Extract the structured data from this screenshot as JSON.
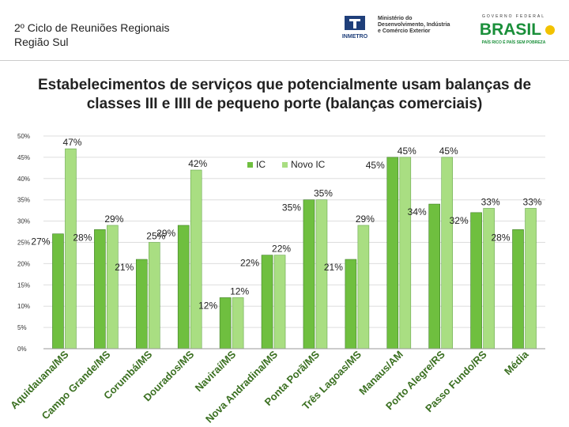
{
  "header": {
    "event_line1": "2º Ciclo de Reuniões Regionais",
    "event_line2": "Região Sul",
    "inmetro_label": "INMETRO",
    "ministry_line1": "Ministério do",
    "ministry_line2": "Desenvolvimento, Indústria",
    "ministry_line3": "e Comércio Exterior",
    "govt_label": "GOVERNO FEDERAL",
    "brasil_label": "BRASIL",
    "brasil_slogan": "PAÍS RICO É PAÍS SEM POBREZA"
  },
  "colors": {
    "ic": "#6fbf3f",
    "novo_ic": "#a9de82",
    "ic_edge": "#3f7f26",
    "novo_edge": "#6aa84f"
  },
  "chart_data": {
    "type": "bar",
    "title": "Estabelecimentos de serviços que potencialmente usam balanças de classes III e IIII de pequeno porte (balanças comerciais)",
    "title_line1": "Estabelecimentos de serviços que potencialmente usam balanças de",
    "title_line2": "classes III e IIII de pequeno porte (balanças comerciais)",
    "categories": [
      "Aquidauana/MS",
      "Campo Grande/MS",
      "Corumbá/MS",
      "Dourados/MS",
      "Naviraí/MS",
      "Nova Andradina/MS",
      "Ponta Porã/MS",
      "Três Lagoas/MS",
      "Manaus/AM",
      "Porto Alegre/RS",
      "Passo Fundo/RS",
      "Média"
    ],
    "series": [
      {
        "name": "IC",
        "values": [
          27,
          28,
          21,
          29,
          12,
          22,
          35,
          21,
          45,
          34,
          32,
          28
        ]
      },
      {
        "name": "Novo IC",
        "values": [
          47,
          29,
          25,
          42,
          12,
          22,
          35,
          29,
          45,
          45,
          33,
          33
        ]
      }
    ],
    "ic_labels": [
      "27%",
      "28%",
      "21%",
      "29%",
      "12%",
      "22%",
      "35%",
      "21%",
      "45%",
      "34%",
      "32%",
      "28%"
    ],
    "novo_labels": [
      "47%",
      "29%",
      "25%",
      "42%",
      "12%",
      "22%",
      "35%",
      "29%",
      "45%",
      "45%",
      "33%",
      "33%"
    ],
    "y_ticks": [
      "0%",
      "5%",
      "10%",
      "15%",
      "20%",
      "25%",
      "30%",
      "35%",
      "40%",
      "45%",
      "50%"
    ],
    "ylim": [
      0,
      50
    ],
    "legend": [
      "IC",
      "Novo IC"
    ],
    "legend_position": "top-center",
    "xlabel": "",
    "ylabel": ""
  }
}
